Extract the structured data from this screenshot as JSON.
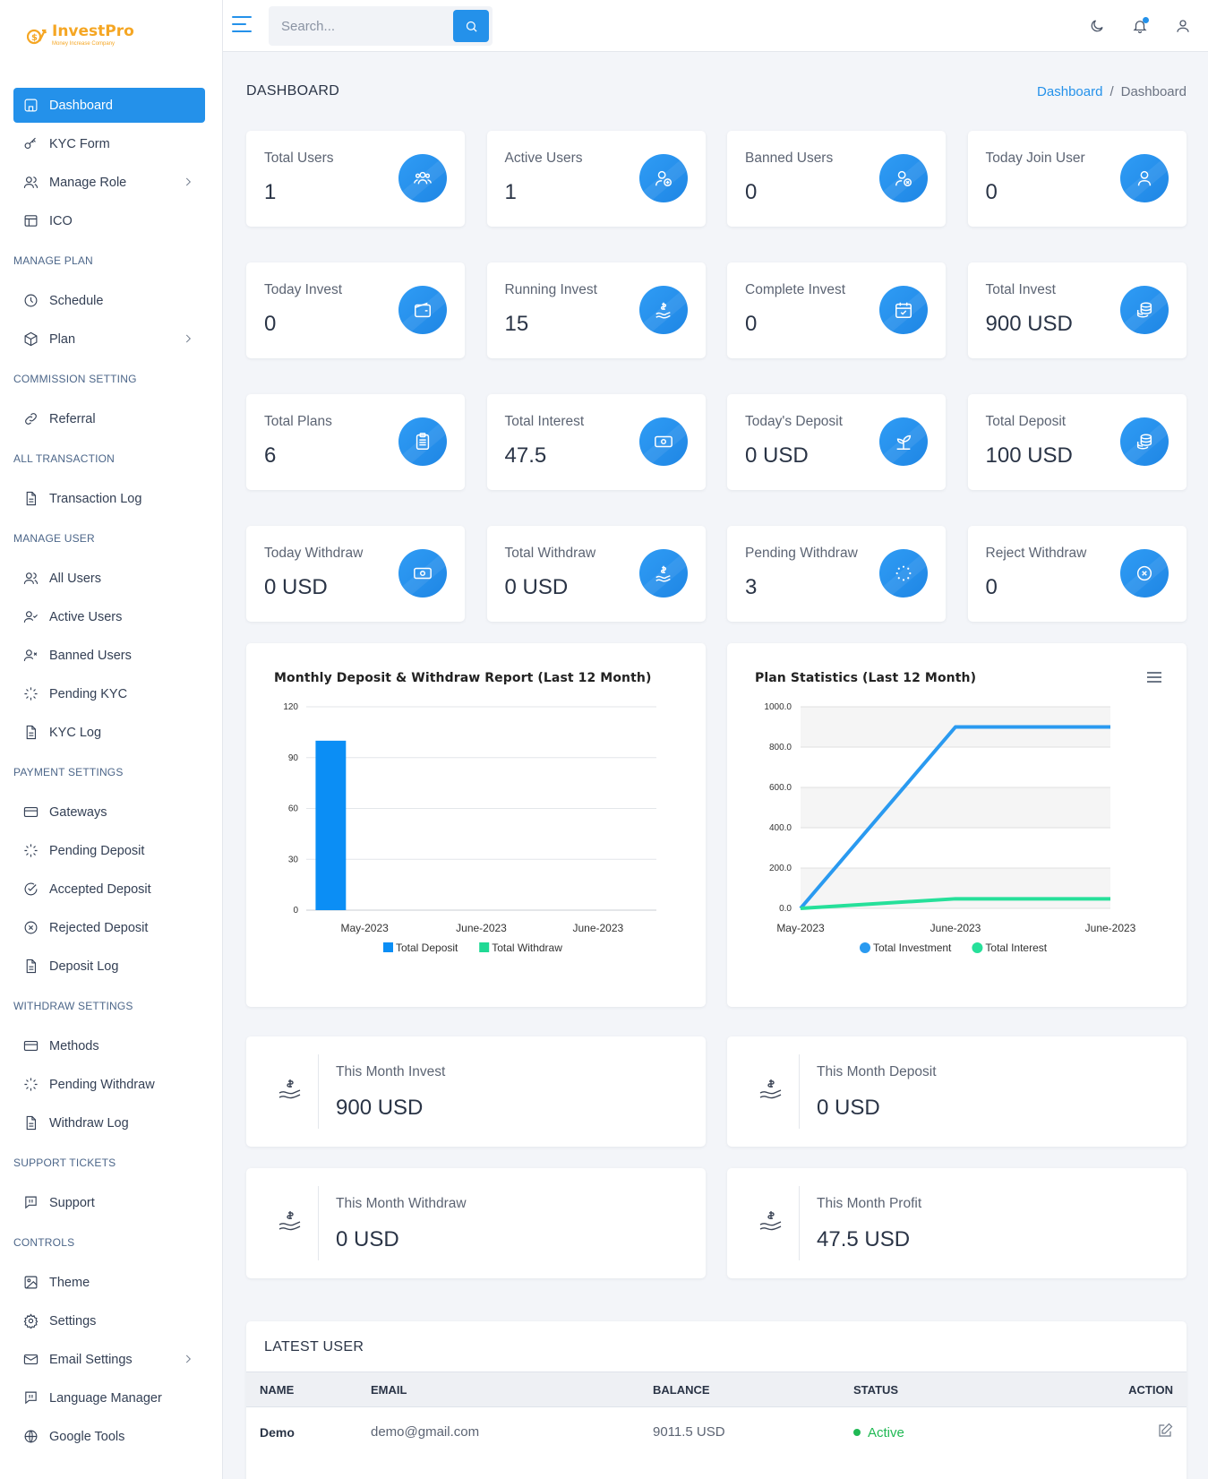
{
  "brand": {
    "name": "InvestPro",
    "tagline": "Money Increase Company"
  },
  "search": {
    "placeholder": "Search..."
  },
  "sidebar": {
    "items": [
      {
        "label": "Dashboard",
        "icon": "home-icon"
      },
      {
        "label": "KYC Form",
        "icon": "key-icon"
      },
      {
        "label": "Manage Role",
        "icon": "users-icon"
      },
      {
        "label": "ICO",
        "icon": "layout-icon"
      }
    ],
    "sections": [
      {
        "title": "MANAGE PLAN",
        "items": [
          {
            "label": "Schedule",
            "icon": "clock-icon"
          },
          {
            "label": "Plan",
            "icon": "box-icon"
          }
        ]
      },
      {
        "title": "COMMISSION SETTING",
        "items": [
          {
            "label": "Referral",
            "icon": "link-icon"
          }
        ]
      },
      {
        "title": "ALL TRANSACTION",
        "items": [
          {
            "label": "Transaction Log",
            "icon": "document-icon"
          }
        ]
      },
      {
        "title": "MANAGE USER",
        "items": [
          {
            "label": "All Users",
            "icon": "users-icon"
          },
          {
            "label": "Active Users",
            "icon": "user-check-icon"
          },
          {
            "label": "Banned Users",
            "icon": "user-x-icon"
          },
          {
            "label": "Pending KYC",
            "icon": "loader-icon"
          },
          {
            "label": "KYC Log",
            "icon": "document-icon"
          }
        ]
      },
      {
        "title": "PAYMENT SETTINGS",
        "items": [
          {
            "label": "Gateways",
            "icon": "credit-card-icon"
          },
          {
            "label": "Pending Deposit",
            "icon": "loader-icon"
          },
          {
            "label": "Accepted Deposit",
            "icon": "check-circle-icon"
          },
          {
            "label": "Rejected Deposit",
            "icon": "x-circle-icon"
          },
          {
            "label": "Deposit Log",
            "icon": "document-icon"
          }
        ]
      },
      {
        "title": "WITHDRAW SETTINGS",
        "items": [
          {
            "label": "Methods",
            "icon": "credit-card-icon"
          },
          {
            "label": "Pending Withdraw",
            "icon": "loader-icon"
          },
          {
            "label": "Withdraw Log",
            "icon": "document-icon"
          }
        ]
      },
      {
        "title": "SUPPORT TICKETS",
        "items": [
          {
            "label": "Support",
            "icon": "message-icon"
          }
        ]
      },
      {
        "title": "CONTROLS",
        "items": [
          {
            "label": "Theme",
            "icon": "image-icon"
          },
          {
            "label": "Settings",
            "icon": "gear-icon"
          },
          {
            "label": "Email Settings",
            "icon": "mail-icon"
          },
          {
            "label": "Language Manager",
            "icon": "message-icon"
          },
          {
            "label": "Google Tools",
            "icon": "globe-icon"
          }
        ]
      }
    ]
  },
  "page": {
    "title": "DASHBOARD",
    "breadcrumb": [
      "Dashboard",
      "Dashboard"
    ]
  },
  "stats": [
    {
      "label": "Total Users",
      "value": "1",
      "icon": "users-group-icon"
    },
    {
      "label": "Active Users",
      "value": "1",
      "icon": "user-plus-icon"
    },
    {
      "label": "Banned Users",
      "value": "0",
      "icon": "user-x-icon"
    },
    {
      "label": "Today Join User",
      "value": "0",
      "icon": "user-icon"
    },
    {
      "label": "Today Invest",
      "value": "0",
      "icon": "wallet-icon"
    },
    {
      "label": "Running Invest",
      "value": "15",
      "icon": "hand-dollar-icon"
    },
    {
      "label": "Complete Invest",
      "value": "0",
      "icon": "calendar-check-icon"
    },
    {
      "label": "Total Invest",
      "value": "900 USD",
      "icon": "coins-icon"
    },
    {
      "label": "Total Plans",
      "value": "6",
      "icon": "clipboard-icon"
    },
    {
      "label": "Total Interest",
      "value": "47.5",
      "icon": "cash-icon"
    },
    {
      "label": "Today's Deposit",
      "value": "0 USD",
      "icon": "plant-icon"
    },
    {
      "label": "Total Deposit",
      "value": "100 USD",
      "icon": "coins-icon"
    },
    {
      "label": "Today Withdraw",
      "value": "0 USD",
      "icon": "cash-icon"
    },
    {
      "label": "Total Withdraw",
      "value": "0 USD",
      "icon": "hand-dollar-icon"
    },
    {
      "label": "Pending Withdraw",
      "value": "3",
      "icon": "loader-icon"
    },
    {
      "label": "Reject Withdraw",
      "value": "0",
      "icon": "x-circle-icon"
    }
  ],
  "chart_data": [
    {
      "type": "bar",
      "title": "Monthly Deposit & Withdraw Report (Last 12 Month)",
      "categories": [
        "May-2023",
        "June-2023",
        "June-2023"
      ],
      "series": [
        {
          "name": "Total Deposit",
          "values": [
            100,
            0,
            0
          ],
          "color": "#0b8ef5"
        },
        {
          "name": "Total Withdraw",
          "values": [
            0,
            0,
            0
          ],
          "color": "#1fd994"
        }
      ],
      "yticks": [
        "0",
        "30",
        "60",
        "90",
        "120"
      ],
      "ylim": [
        0,
        120
      ],
      "grid": true,
      "legend": "bottom"
    },
    {
      "type": "line",
      "title": "Plan Statistics (Last 12 Month)",
      "categories": [
        "May-2023",
        "June-2023",
        "June-2023"
      ],
      "series": [
        {
          "name": "Total Investment",
          "values": [
            0,
            900,
            900
          ],
          "color": "#2a9af0"
        },
        {
          "name": "Total Interest",
          "values": [
            0,
            47.5,
            47.5
          ],
          "color": "#26e09a"
        }
      ],
      "yticks": [
        "0.0",
        "200.0",
        "400.0",
        "600.0",
        "800.0",
        "1000.0"
      ],
      "ylim": [
        0,
        1000
      ],
      "grid": true,
      "legend": "bottom"
    }
  ],
  "month_stats": [
    {
      "label": "This Month Invest",
      "value": "900 USD",
      "icon": "hand-dollar-icon"
    },
    {
      "label": "This Month Deposit",
      "value": "0 USD",
      "icon": "hand-dollar-icon"
    },
    {
      "label": "This Month Withdraw",
      "value": "0 USD",
      "icon": "hand-dollar-icon"
    },
    {
      "label": "This Month Profit",
      "value": "47.5 USD",
      "icon": "hand-dollar-icon"
    }
  ],
  "latest_users": {
    "title": "LATEST USER",
    "columns": [
      "NAME",
      "EMAIL",
      "BALANCE",
      "STATUS",
      "ACTION"
    ],
    "rows": [
      {
        "name": "Demo",
        "email": "demo@gmail.com",
        "balance": "9011.5 USD",
        "status": "Active"
      }
    ]
  },
  "colors": {
    "accent": "#2491ea",
    "success": "#20b954"
  }
}
